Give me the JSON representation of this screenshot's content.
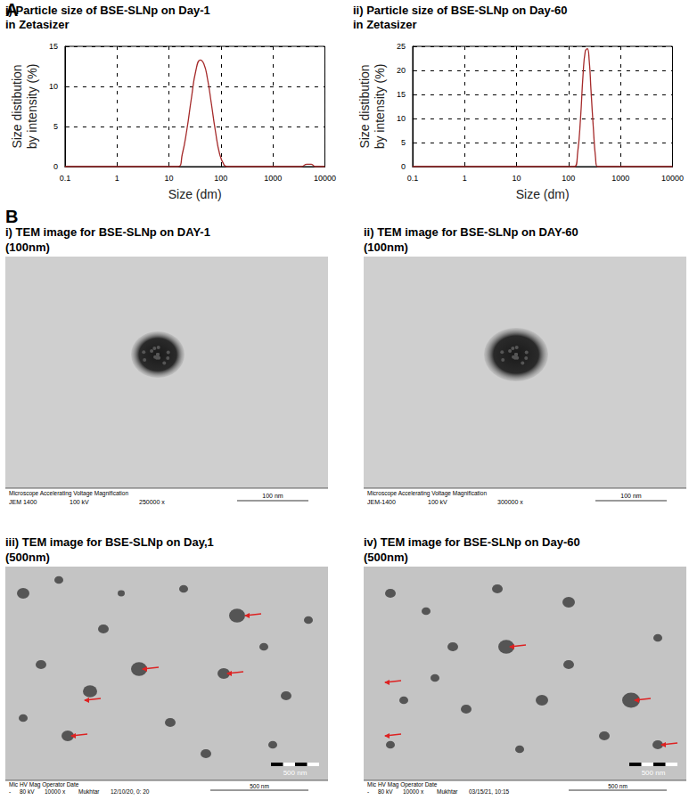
{
  "panel_labels": [
    "A",
    "B"
  ],
  "chart_data": [
    {
      "type": "line",
      "title": "i) Particle size of BSE-SLNp on Day-1\nin Zetasizer",
      "x_label": "Size (dm)",
      "y_label": "Size distibution\nby intensity (%)",
      "x": [
        0.1,
        15,
        18,
        22,
        27,
        33,
        40,
        47,
        55,
        65,
        78,
        95,
        115,
        130,
        3500,
        4500,
        5500,
        6500,
        10000
      ],
      "values": [
        0,
        0,
        1.5,
        4.5,
        8.5,
        12,
        13.3,
        12.8,
        11,
        8,
        4.5,
        1.5,
        0.2,
        0,
        0,
        0.3,
        0.3,
        0,
        0
      ],
      "color": "#a52a2a",
      "log": "x",
      "grid": true,
      "xlim": [
        0.1,
        10000
      ],
      "xticks": [
        0.1,
        1,
        10,
        100,
        1000,
        10000
      ],
      "ylim": [
        0,
        15
      ],
      "yticks": [
        0,
        5,
        10,
        15
      ]
    },
    {
      "type": "line",
      "title": "ii) Particle size of BSE-SLNp on Day-60\nin Zetasizer",
      "x_label": "Size (dm)",
      "y_label": "Size distibution\nby intensity (%)",
      "x": [
        0.1,
        130,
        150,
        170,
        190,
        210,
        230,
        250,
        270,
        300,
        330,
        360,
        10000
      ],
      "values": [
        0,
        0,
        3,
        10,
        19,
        24,
        24.5,
        22,
        16,
        8,
        2,
        0,
        0
      ],
      "color": "#a52a2a",
      "log": "x",
      "grid": true,
      "xlim": [
        0.1,
        10000
      ],
      "xticks": [
        0.1,
        1,
        10,
        100,
        1000,
        10000
      ],
      "ylim": [
        0,
        25
      ],
      "yticks": [
        0,
        5,
        10,
        15,
        20,
        25
      ]
    }
  ],
  "images": [
    {
      "title": "i) TEM image for BSE-SLNp on DAY-1",
      "subtitle": "(100nm)",
      "footer_header": "Microscope Accelerating Voltage Magnification",
      "footer_values": [
        "JEM 1400",
        "100 kV",
        "250000 x"
      ],
      "scale_bar": "100 nm"
    },
    {
      "title": "ii) TEM image for BSE-SLNp on DAY-60",
      "subtitle": "(100nm)",
      "footer_header": "Microscope Accelerating Voltage Magnification",
      "footer_values": [
        "JEM-1400",
        "100 kV",
        "300000 x"
      ],
      "scale_bar": "100 nm"
    },
    {
      "title": "iii) TEM image for BSE-SLNp on Day,1",
      "subtitle": "(500nm)",
      "footer_header": "Mic  HV    Mag    Operator    Date",
      "footer_values": [
        "-",
        "80 kV",
        "10000 x",
        "Mukhtar",
        "12/10/20, 0: 20"
      ],
      "scale_bar": "500 nm"
    },
    {
      "title": "iv) TEM image for BSE-SLNp on Day-60",
      "subtitle": "(500nm)",
      "footer_header": "Mic  HV    Mag    Operator    Date",
      "footer_values": [
        "-",
        "80 kV",
        "10000 x",
        "Mukhtar",
        "03/15/21, 10:15"
      ],
      "scale_bar": "500 nm"
    }
  ]
}
